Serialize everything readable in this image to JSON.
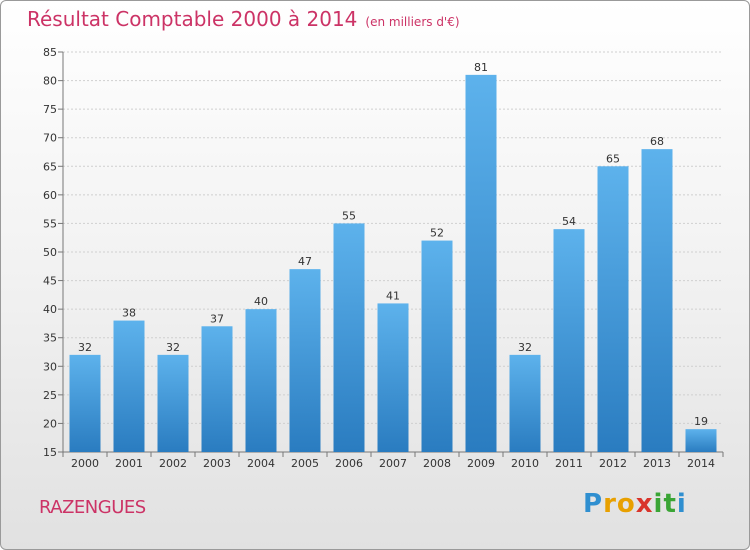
{
  "chart_data": {
    "type": "bar",
    "title": "Résultat Comptable 2000 à 2014",
    "subtitle": "(en milliers d'€)",
    "categories": [
      "2000",
      "2001",
      "2002",
      "2003",
      "2004",
      "2005",
      "2006",
      "2007",
      "2008",
      "2009",
      "2010",
      "2011",
      "2012",
      "2013",
      "2014"
    ],
    "values": [
      32,
      38,
      32,
      37,
      40,
      47,
      55,
      41,
      52,
      81,
      32,
      54,
      65,
      68,
      19
    ],
    "ylim": [
      15,
      85
    ],
    "yticks": [
      15,
      20,
      25,
      30,
      35,
      40,
      45,
      50,
      55,
      60,
      65,
      70,
      75,
      80,
      85
    ],
    "grid": true,
    "bar_color": "#3d93d6"
  },
  "footer": {
    "place_name": "RAZENGUES"
  },
  "logo": {
    "letters": [
      "P",
      "r",
      "o",
      "x",
      "i",
      "t",
      "i"
    ],
    "colors": [
      "#2f8fd0",
      "#e8a000",
      "#e8a000",
      "#d9342b",
      "#3aa535",
      "#3aa535",
      "#2f8fd0"
    ]
  },
  "colors": {
    "title": "#cc3366"
  }
}
